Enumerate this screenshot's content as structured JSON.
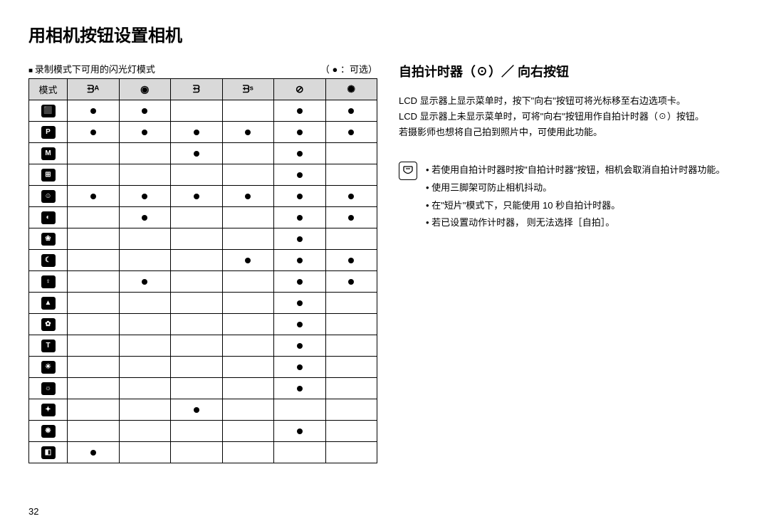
{
  "page_title": "用相机按钮设置相机",
  "page_number": "32",
  "left": {
    "caption": "录制模式下可用的闪光灯模式",
    "legend": "（  ●   ：可选）",
    "header_mode": "模式",
    "columns": [
      "flash-auto",
      "redeye",
      "flash-fill",
      "flash-slow",
      "flash-off",
      "redeye-fix"
    ],
    "column_glyphs": [
      "ᗲᴬ",
      "◉",
      "ᗲ",
      "ᗲˢ",
      "⊘",
      "✺"
    ],
    "rows": [
      {
        "icon": "⬛",
        "label": "auto",
        "cells": [
          1,
          1,
          0,
          0,
          1,
          1
        ]
      },
      {
        "icon": "P",
        "label": "program",
        "cells": [
          1,
          1,
          1,
          1,
          1,
          1
        ]
      },
      {
        "icon": "M",
        "label": "manual",
        "cells": [
          0,
          0,
          1,
          0,
          1,
          0
        ]
      },
      {
        "icon": "⊞",
        "label": "dis",
        "cells": [
          0,
          0,
          0,
          0,
          1,
          0
        ]
      },
      {
        "icon": "☺",
        "label": "guide",
        "cells": [
          1,
          1,
          1,
          1,
          1,
          1
        ]
      },
      {
        "icon": "◐",
        "label": "night",
        "cells": [
          0,
          1,
          0,
          0,
          1,
          1
        ]
      },
      {
        "icon": "❀",
        "label": "portrait",
        "cells": [
          0,
          0,
          0,
          0,
          1,
          0
        ]
      },
      {
        "icon": "☾",
        "label": "children",
        "cells": [
          0,
          0,
          0,
          1,
          1,
          1
        ]
      },
      {
        "icon": "♀",
        "label": "landscape",
        "cells": [
          0,
          1,
          0,
          0,
          1,
          1
        ]
      },
      {
        "icon": "▲",
        "label": "closeup",
        "cells": [
          0,
          0,
          0,
          0,
          1,
          0
        ]
      },
      {
        "icon": "✿",
        "label": "text",
        "cells": [
          0,
          0,
          0,
          0,
          1,
          0
        ]
      },
      {
        "icon": "T",
        "label": "sunset",
        "cells": [
          0,
          0,
          0,
          0,
          1,
          0
        ]
      },
      {
        "icon": "☀",
        "label": "dawn",
        "cells": [
          0,
          0,
          0,
          0,
          1,
          0
        ]
      },
      {
        "icon": "☼",
        "label": "backlight",
        "cells": [
          0,
          0,
          0,
          0,
          1,
          0
        ]
      },
      {
        "icon": "✦",
        "label": "firework",
        "cells": [
          0,
          0,
          1,
          0,
          0,
          0
        ]
      },
      {
        "icon": "❋",
        "label": "beach",
        "cells": [
          0,
          0,
          0,
          0,
          1,
          0
        ]
      },
      {
        "icon": "◧",
        "label": "selfshot",
        "cells": [
          1,
          0,
          0,
          0,
          0,
          0
        ]
      }
    ]
  },
  "right": {
    "section_title": "自拍计时器（☉）／ 向右按钮",
    "body_lines": [
      "LCD 显示器上显示菜单时，按下\"向右\"按钮可将光标移至右边选项卡。",
      "LCD 显示器上未显示菜单时，可将\"向右\"按钮用作自拍计时器（☉）按钮。",
      "若摄影师也想将自己拍到照片中，可使用此功能。"
    ],
    "notes": [
      "若使用自拍计时器时按\"自拍计时器\"按钮，相机会取消自拍计时器功能。",
      "使用三脚架可防止相机抖动。",
      "在\"短片\"模式下，只能使用 10 秒自拍计时器。",
      "若已设置动作计时器， 则无法选择［自拍］。"
    ]
  },
  "style": {
    "header_bg": "#d9d9d9",
    "border_color": "#000000",
    "text_color": "#000000",
    "row_icon_bg": "#000000",
    "row_icon_fg": "#ffffff",
    "title_fontsize": 24,
    "section_title_fontsize": 18,
    "body_fontsize": 13
  }
}
